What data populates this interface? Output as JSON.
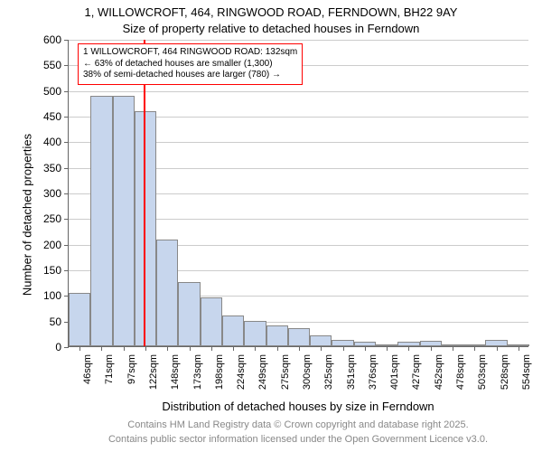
{
  "title_line1": "1, WILLOWCROFT, 464, RINGWOOD ROAD, FERNDOWN, BH22 9AY",
  "title_line2": "Size of property relative to detached houses in Ferndown",
  "ylabel": "Number of detached properties",
  "xlabel": "Distribution of detached houses by size in Ferndown",
  "footer1": "Contains HM Land Registry data © Crown copyright and database right 2025.",
  "footer2": "Contains public sector information licensed under the Open Government Licence v3.0.",
  "chart": {
    "type": "histogram",
    "bar_fill": "#c7d6ed",
    "bar_border": "#888888",
    "grid_color": "#cccccc",
    "axis_color": "#666666",
    "background_color": "#ffffff",
    "ylim": [
      0,
      600
    ],
    "ytick_step": 50,
    "categories": [
      "46sqm",
      "71sqm",
      "97sqm",
      "122sqm",
      "148sqm",
      "173sqm",
      "198sqm",
      "224sqm",
      "249sqm",
      "275sqm",
      "300sqm",
      "325sqm",
      "351sqm",
      "376sqm",
      "401sqm",
      "427sqm",
      "452sqm",
      "478sqm",
      "503sqm",
      "528sqm",
      "554sqm"
    ],
    "values": [
      105,
      488,
      488,
      458,
      208,
      125,
      95,
      60,
      50,
      40,
      35,
      22,
      12,
      8,
      3,
      8,
      10,
      2,
      2,
      12,
      3
    ],
    "marker_after_index": 3,
    "marker_color": "#ff0000",
    "annotation": {
      "line1": "1 WILLOWCROFT, 464 RINGWOOD ROAD: 132sqm",
      "line2": "← 63% of detached houses are smaller (1,300)",
      "line3": "38% of semi-detached houses are larger (780) →",
      "border_color": "#ff0000",
      "bg_color": "#ffffff",
      "fontsize": 10
    },
    "title_fontsize": 13,
    "label_fontsize": 13,
    "tick_fontsize": 12,
    "xtick_fontsize": 11,
    "footer_color": "#888888",
    "footer_fontsize": 11
  }
}
